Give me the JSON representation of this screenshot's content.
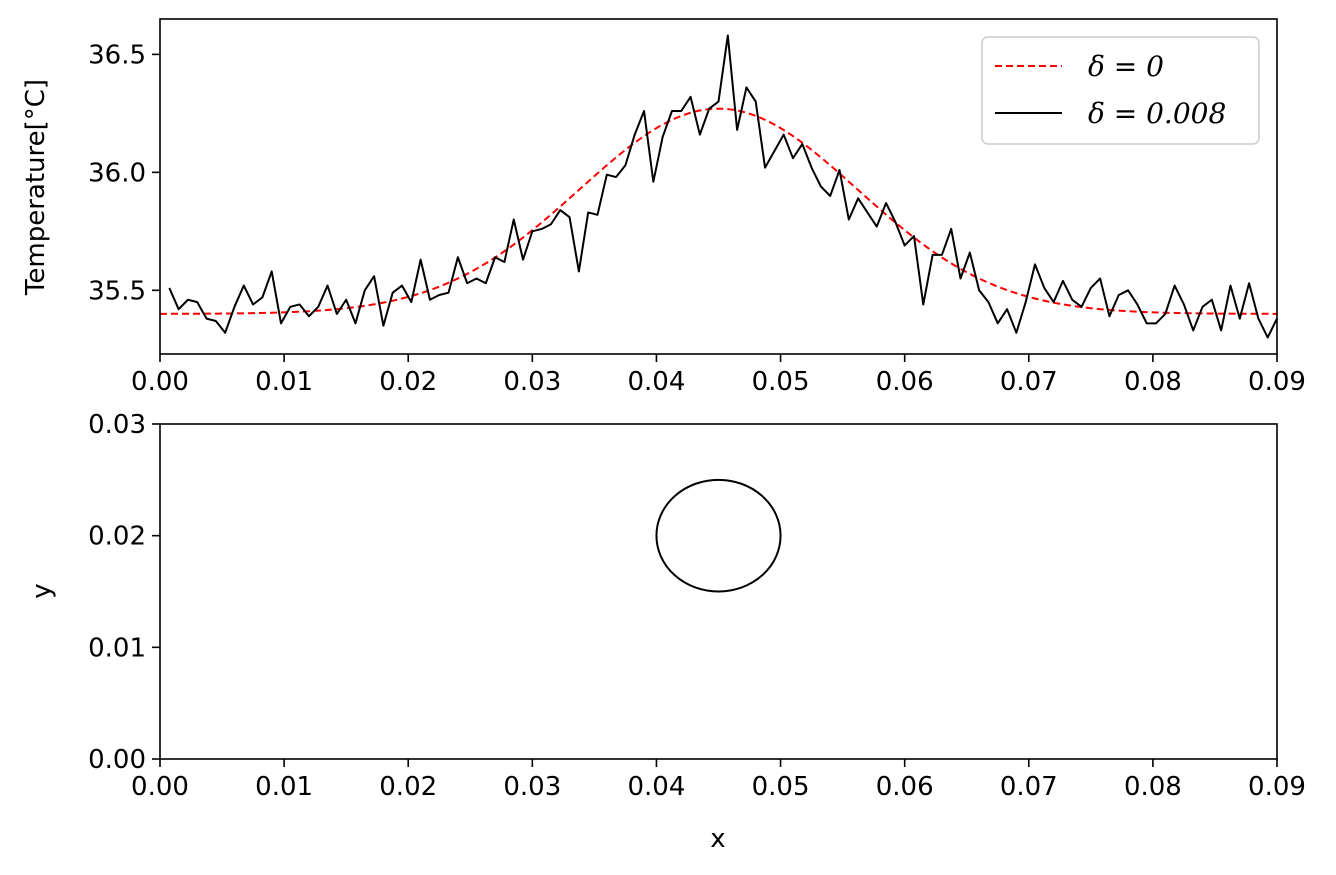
{
  "chart_data": [
    {
      "type": "line",
      "ylabel": "Temperature[°C]",
      "xlim": [
        0.0,
        0.09
      ],
      "ylim": [
        35.23,
        36.65
      ],
      "xticks": [
        "0.00",
        "0.01",
        "0.02",
        "0.03",
        "0.04",
        "0.05",
        "0.06",
        "0.07",
        "0.08",
        "0.09"
      ],
      "yticks": [
        "35.5",
        "36.0",
        "36.5"
      ],
      "grid": false,
      "legend_position": "top-right",
      "series": [
        {
          "name": "δ = 0",
          "style": "dashed",
          "color": "#ff0000",
          "model": "gaussian",
          "baseline": 35.4,
          "amplitude": 0.87,
          "center": 0.045,
          "sigma": 0.0112
        },
        {
          "name": "δ = 0.008",
          "style": "solid",
          "color": "#000000",
          "x_start": 0.00075,
          "x_step": 0.00075,
          "values": [
            35.51,
            35.42,
            35.46,
            35.45,
            35.38,
            35.37,
            35.32,
            35.43,
            35.52,
            35.44,
            35.47,
            35.58,
            35.36,
            35.43,
            35.44,
            35.39,
            35.43,
            35.52,
            35.4,
            35.46,
            35.36,
            35.5,
            35.56,
            35.35,
            35.49,
            35.52,
            35.45,
            35.63,
            35.46,
            35.48,
            35.49,
            35.64,
            35.53,
            35.55,
            35.53,
            35.64,
            35.62,
            35.8,
            35.63,
            35.75,
            35.76,
            35.78,
            35.84,
            35.81,
            35.58,
            35.83,
            35.82,
            35.99,
            35.98,
            36.03,
            36.16,
            36.26,
            35.96,
            36.15,
            36.26,
            36.26,
            36.32,
            36.16,
            36.27,
            36.3,
            36.58,
            36.18,
            36.36,
            36.3,
            36.02,
            36.09,
            36.16,
            36.06,
            36.12,
            36.02,
            35.94,
            35.9,
            36.01,
            35.8,
            35.89,
            35.83,
            35.77,
            35.87,
            35.79,
            35.69,
            35.73,
            35.44,
            35.65,
            35.65,
            35.76,
            35.55,
            35.66,
            35.5,
            35.45,
            35.36,
            35.42,
            35.32,
            35.45,
            35.61,
            35.51,
            35.45,
            35.54,
            35.46,
            35.43,
            35.51,
            35.55,
            35.39,
            35.48,
            35.5,
            35.44,
            35.36,
            35.36,
            35.4,
            35.52,
            35.44,
            35.33,
            35.43,
            35.46,
            35.33,
            35.52,
            35.38,
            35.53,
            35.38,
            35.3,
            35.38
          ]
        }
      ]
    },
    {
      "type": "scatter",
      "xlabel": "x",
      "ylabel": "y",
      "xlim": [
        0.0,
        0.09
      ],
      "ylim": [
        0.0,
        0.03
      ],
      "xticks": [
        "0.00",
        "0.01",
        "0.02",
        "0.03",
        "0.04",
        "0.05",
        "0.06",
        "0.07",
        "0.08",
        "0.09"
      ],
      "yticks": [
        "0.00",
        "0.01",
        "0.02",
        "0.03"
      ],
      "grid": false,
      "shapes": [
        {
          "kind": "circle",
          "center_x": 0.045,
          "center_y": 0.02,
          "radius": 0.005,
          "color": "#000000"
        }
      ]
    }
  ]
}
